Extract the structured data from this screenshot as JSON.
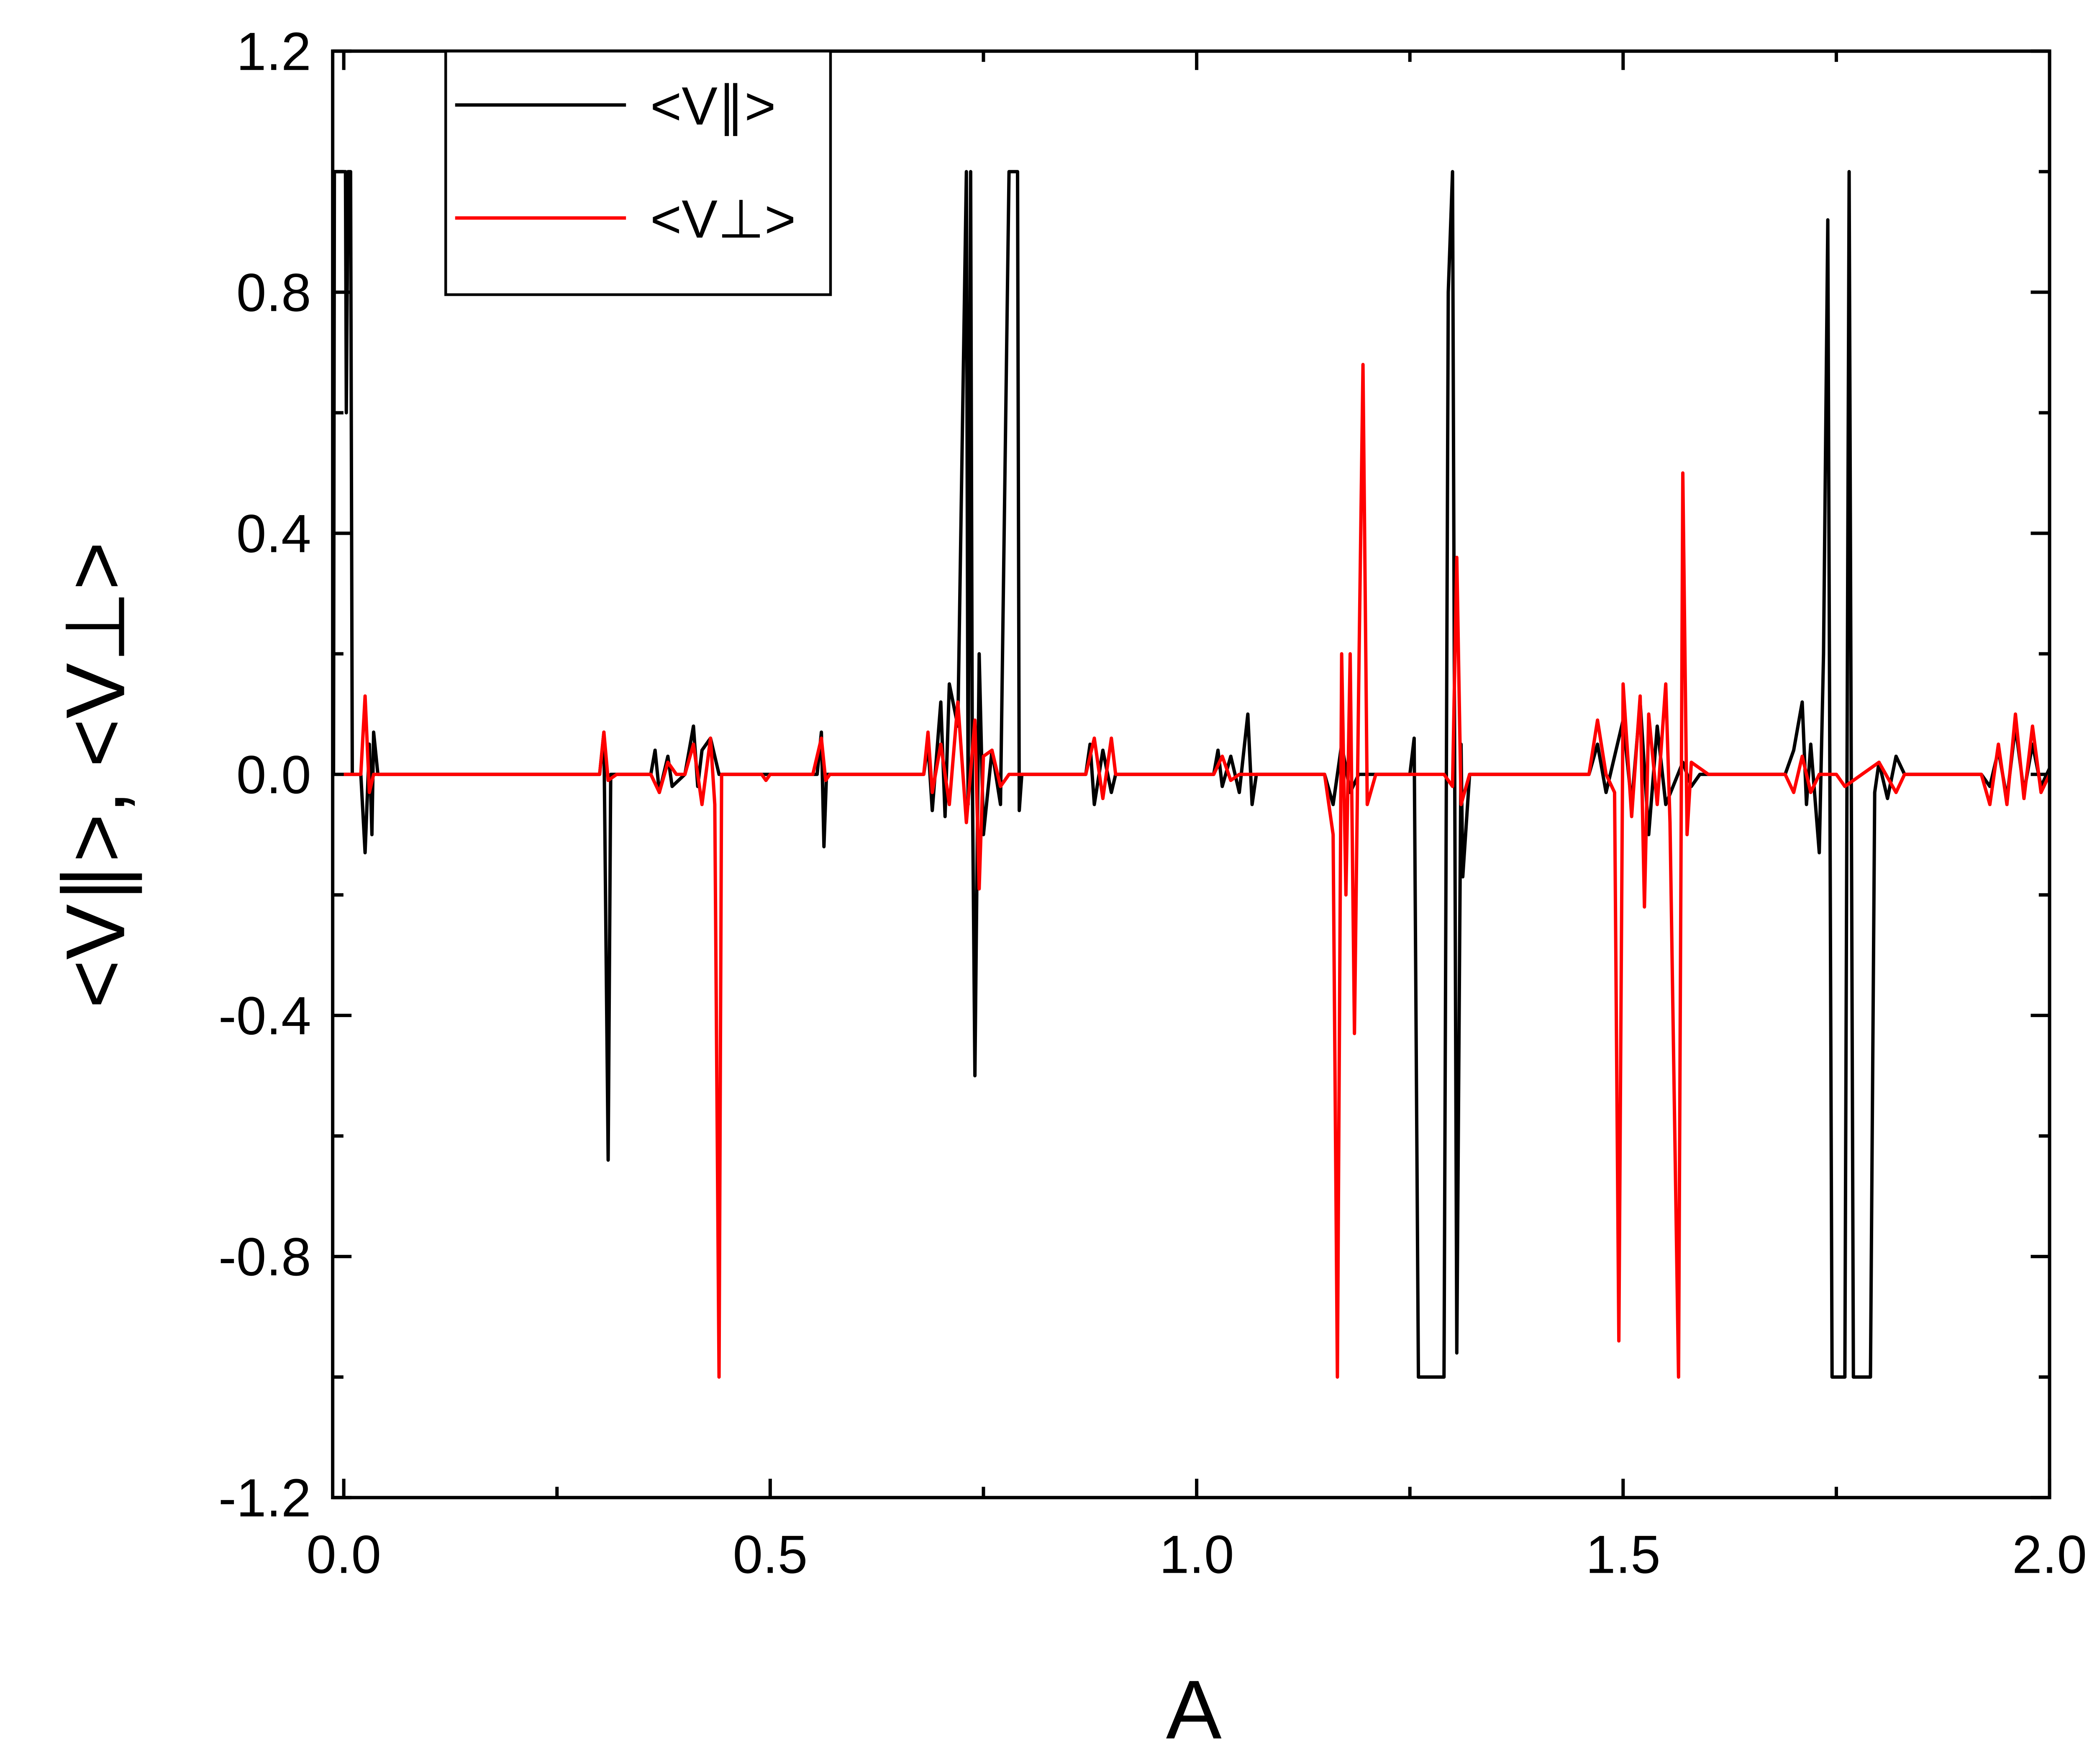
{
  "chart_data": {
    "type": "line",
    "x_label": "A",
    "y_label": "<V∥>, <V⊥>",
    "xlim": [
      -0.013,
      2.0
    ],
    "ylim": [
      -1.2,
      1.2
    ],
    "xticks": [
      {
        "value": 0,
        "label": "0.0"
      },
      0.5,
      {
        "value": 1,
        "label": "1.0"
      },
      1.5,
      {
        "value": 2,
        "label": "2.0"
      }
    ],
    "yticks": [
      -1.2,
      -0.8,
      -0.4,
      {
        "value": 0,
        "label": "0.0"
      },
      0.4,
      0.8,
      1.2
    ],
    "x_minor_ticks": [
      0.25,
      0.75,
      1.25,
      1.75
    ],
    "y_minor_ticks": [
      -1.0,
      -0.6,
      -0.2,
      0.2,
      0.6,
      1.0
    ],
    "legend": "upper left",
    "series": [
      {
        "name": "<V∥>",
        "color": "#000000",
        "x": [
          -0.012,
          -0.011,
          0.002,
          0.003,
          0.005,
          0.008,
          0.01,
          0.02,
          0.025,
          0.03,
          0.033,
          0.035,
          0.04,
          0.3,
          0.305,
          0.31,
          0.313,
          0.36,
          0.365,
          0.37,
          0.38,
          0.385,
          0.4,
          0.41,
          0.415,
          0.42,
          0.43,
          0.44,
          0.555,
          0.56,
          0.563,
          0.566,
          0.68,
          0.685,
          0.69,
          0.7,
          0.705,
          0.71,
          0.72,
          0.73,
          0.732,
          0.735,
          0.737,
          0.74,
          0.745,
          0.75,
          0.76,
          0.77,
          0.78,
          0.79,
          0.792,
          0.795,
          0.87,
          0.875,
          0.88,
          0.89,
          0.9,
          0.905,
          1.02,
          1.025,
          1.03,
          1.04,
          1.05,
          1.06,
          1.065,
          1.07,
          1.15,
          1.16,
          1.17,
          1.18,
          1.19,
          1.25,
          1.255,
          1.26,
          1.29,
          1.295,
          1.3,
          1.305,
          1.31,
          1.312,
          1.32,
          1.46,
          1.47,
          1.48,
          1.5,
          1.51,
          1.52,
          1.53,
          1.54,
          1.55,
          1.57,
          1.58,
          1.59,
          1.69,
          1.7,
          1.71,
          1.715,
          1.72,
          1.73,
          1.735,
          1.74,
          1.745,
          1.76,
          1.765,
          1.77,
          1.79,
          1.795,
          1.8,
          1.81,
          1.82,
          1.83,
          1.92,
          1.93,
          1.94,
          1.95,
          1.96,
          1.97,
          1.98,
          1.99,
          2.0
        ],
        "values": [
          0,
          1.0,
          1.0,
          0.6,
          1.0,
          1.0,
          0,
          0,
          -0.13,
          0.05,
          -0.1,
          0.07,
          0,
          0,
          0.07,
          -0.64,
          0,
          0,
          0.04,
          -0.03,
          0.03,
          -0.02,
          0,
          0.08,
          -0.02,
          0.04,
          0.06,
          0,
          0,
          0.07,
          -0.12,
          0,
          0,
          0.05,
          -0.06,
          0.12,
          -0.07,
          0.15,
          0.08,
          1.0,
          -0.05,
          1.0,
          0,
          -0.5,
          0.2,
          -0.1,
          0.04,
          -0.05,
          1.0,
          1.0,
          -0.06,
          0,
          0,
          0.05,
          -0.05,
          0.04,
          -0.03,
          0,
          0,
          0.04,
          -0.02,
          0.03,
          -0.03,
          0.1,
          -0.05,
          0,
          0,
          -0.05,
          0.05,
          -0.03,
          0,
          0,
          0.06,
          -1.0,
          -1.0,
          0.8,
          1.0,
          -0.96,
          0.05,
          -0.17,
          0,
          0,
          0.05,
          -0.03,
          0.09,
          -0.05,
          0.12,
          -0.1,
          0.08,
          -0.05,
          0.02,
          -0.02,
          0,
          0,
          0.04,
          0.12,
          -0.05,
          0.05,
          -0.13,
          0.2,
          0.92,
          -1.0,
          -1.0,
          1.0,
          -1.0,
          -1.0,
          -0.03,
          0.02,
          -0.04,
          0.03,
          0,
          0,
          -0.02,
          0.04,
          -0.04,
          0.08,
          -0.03,
          0.05,
          -0.02,
          0.01
        ]
      },
      {
        "name": "<V⊥>",
        "color": "#ff0000",
        "x": [
          0,
          0.02,
          0.025,
          0.03,
          0.035,
          0.3,
          0.305,
          0.31,
          0.32,
          0.36,
          0.37,
          0.38,
          0.39,
          0.4,
          0.41,
          0.42,
          0.43,
          0.435,
          0.44,
          0.443,
          0.49,
          0.495,
          0.5,
          0.55,
          0.56,
          0.565,
          0.57,
          0.68,
          0.685,
          0.69,
          0.7,
          0.71,
          0.72,
          0.73,
          0.74,
          0.745,
          0.75,
          0.76,
          0.77,
          0.78,
          0.87,
          0.88,
          0.89,
          0.9,
          0.905,
          1.02,
          1.03,
          1.04,
          1.05,
          1.15,
          1.16,
          1.165,
          1.17,
          1.175,
          1.18,
          1.185,
          1.19,
          1.195,
          1.2,
          1.21,
          1.29,
          1.3,
          1.305,
          1.31,
          1.32,
          1.46,
          1.47,
          1.48,
          1.49,
          1.495,
          1.5,
          1.51,
          1.52,
          1.525,
          1.53,
          1.54,
          1.55,
          1.555,
          1.565,
          1.57,
          1.575,
          1.58,
          1.6,
          1.69,
          1.7,
          1.71,
          1.72,
          1.73,
          1.75,
          1.76,
          1.8,
          1.82,
          1.83,
          1.92,
          1.93,
          1.94,
          1.95,
          1.96,
          1.97,
          1.98,
          1.99,
          2.0
        ],
        "values": [
          0,
          0,
          0.13,
          -0.03,
          0,
          0,
          0.07,
          -0.01,
          0,
          0,
          -0.03,
          0.02,
          0,
          0,
          0.05,
          -0.05,
          0.06,
          -0.05,
          -1.0,
          0,
          0,
          -0.01,
          0,
          0,
          0.06,
          -0.01,
          0,
          0,
          0.07,
          -0.03,
          0.05,
          -0.05,
          0.12,
          -0.08,
          0.09,
          -0.19,
          0.03,
          0.04,
          -0.02,
          0,
          0,
          0.06,
          -0.04,
          0.06,
          0,
          0,
          0.03,
          -0.01,
          0,
          0,
          -0.1,
          -1.0,
          0.2,
          -0.2,
          0.2,
          -0.43,
          0.15,
          0.68,
          -0.05,
          0,
          0,
          -0.02,
          0.36,
          -0.05,
          0,
          0,
          0.09,
          0,
          -0.03,
          -0.94,
          0.15,
          -0.07,
          0.13,
          -0.22,
          0.1,
          -0.05,
          0.15,
          -0.08,
          -1.0,
          0.5,
          -0.1,
          0.02,
          0,
          0,
          -0.03,
          0.03,
          -0.03,
          0,
          0,
          -0.02,
          0.02,
          -0.03,
          0,
          0,
          -0.05,
          0.05,
          -0.05,
          0.1,
          -0.04,
          0.08,
          -0.03,
          0
        ]
      }
    ]
  }
}
